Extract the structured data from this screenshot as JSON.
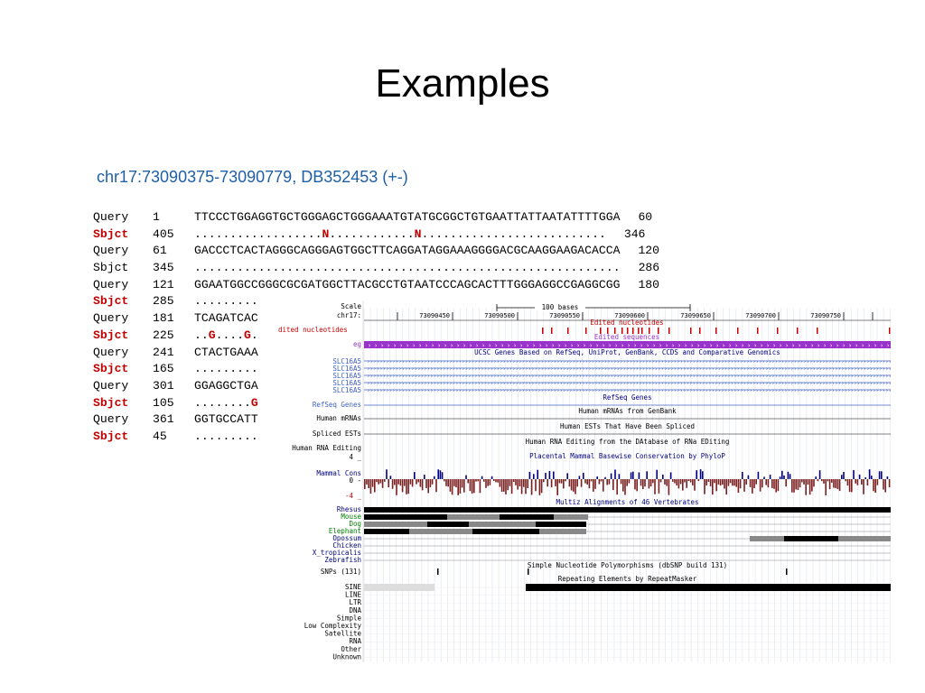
{
  "slide": {
    "title": "Examples",
    "subtitle": "chr17:73090375-73090779, DB352453 (+-)"
  },
  "alignment": [
    {
      "label": "Query",
      "start": "1",
      "seq": "TTCCCTGGAGGTGCTGGGAGCTGGGAAATGTATGCGGCTGTGAATTATTAATATTTTGGA",
      "end": "60",
      "subject": false
    },
    {
      "label": "Sbjct",
      "start": "405",
      "seq": "..................N............N..........................",
      "end": "346",
      "subject": true
    },
    {
      "label": "Query",
      "start": "61",
      "seq": "GACCCTCACTAGGGCAGGGAGTGGCTTCAGGATAGGAAAGGGGACGCAAGGAAGACACCA",
      "end": "120",
      "subject": false
    },
    {
      "label": "Sbjct",
      "start": "345",
      "seq": "............................................................",
      "end": "286",
      "subject": false
    },
    {
      "label": "Query",
      "start": "121",
      "seq": "GGAATGGCCGGGCGCGATGGCTTACGCCTGTAATCCCAGCACTTTGGGAGGCCGAGGCGG",
      "end": "180",
      "subject": false
    },
    {
      "label": "Sbjct",
      "start": "285",
      "seq": ".........",
      "end": "",
      "subject": true
    },
    {
      "label": "Query",
      "start": "181",
      "seq": "TCAGATCAC",
      "end": "",
      "subject": false
    },
    {
      "label": "Sbjct",
      "start": "225",
      "seq": "..G....G.",
      "end": "",
      "subject": true
    },
    {
      "label": "Query",
      "start": "241",
      "seq": "CTACTGAAA",
      "end": "",
      "subject": false
    },
    {
      "label": "Sbjct",
      "start": "165",
      "seq": ".........",
      "end": "",
      "subject": true
    },
    {
      "label": "Query",
      "start": "301",
      "seq": "GGAGGCTGA",
      "end": "",
      "subject": false
    },
    {
      "label": "Sbjct",
      "start": "105",
      "seq": "........G",
      "end": "",
      "subject": true
    },
    {
      "label": "Query",
      "start": "361",
      "seq": "GGTGCCATT",
      "end": "",
      "subject": false
    },
    {
      "label": "Sbjct",
      "start": "45",
      "seq": ".........",
      "end": "",
      "subject": true
    }
  ],
  "browser": {
    "scale_label": "Scale",
    "scale_value": "100 bases",
    "chrom_label": "chr17:",
    "positions": [
      "73090450",
      "73090500",
      "73090550",
      "73090600",
      "73090650",
      "73090700",
      "73090750"
    ],
    "edited_nt_label": "Edited nucleotides",
    "edited_nt_side": "dited nucleotides",
    "edited_seq_label": "Edited sequences",
    "eg_label": "eg",
    "slc_label": "SLC16A5",
    "ucsc_genes_title": "UCSC Genes Based on RefSeq, UniProt, GenBank, CCDS and Comparative Genomics",
    "refseq_title": "RefSeq Genes",
    "refseq_side": "RefSeq Genes",
    "mrna_title": "Human mRNAs from GenBank",
    "mrna_side": "Human mRNAs",
    "est_title": "Human ESTs That Have Been Spliced",
    "est_side": "Spliced ESTs",
    "darned_title": "Human RNA Editing from the DAtabase of RNa EDiting",
    "darned_side": "Human RNA Editing",
    "cons_title": "Placental Mammal Basewise Conservation by PhyloP",
    "cons_side": "Mammal Cons",
    "cons_top": "4 _",
    "cons_zero": "0 -",
    "cons_bottom": "-4 _",
    "multiz_title": "Multiz Alignments of 46 Vertebrates",
    "species": [
      "Rhesus",
      "Mouse",
      "Dog",
      "Elephant",
      "Opossum",
      "Chicken",
      "X_tropicalis",
      "Zebrafish"
    ],
    "species_colors": [
      "#000080",
      "#008000",
      "#008000",
      "#008000",
      "#000080",
      "#000080",
      "#000080",
      "#000080"
    ],
    "snp_title": "Simple Nucleotide Polymorphisms (dbSNP build 131)",
    "snp_side": "SNPs (131)",
    "rmsk_title": "Repeating Elements by RepeatMasker",
    "rmsk_classes": [
      "SINE",
      "LINE",
      "LTR",
      "DNA",
      "Simple",
      "Low Complexity",
      "Satellite",
      "RNA",
      "Other",
      "Unknown"
    ],
    "colors": {
      "red": "#cc0000",
      "purple": "#9933cc",
      "blue": "#000080",
      "darkred": "#7a1f1f"
    }
  }
}
